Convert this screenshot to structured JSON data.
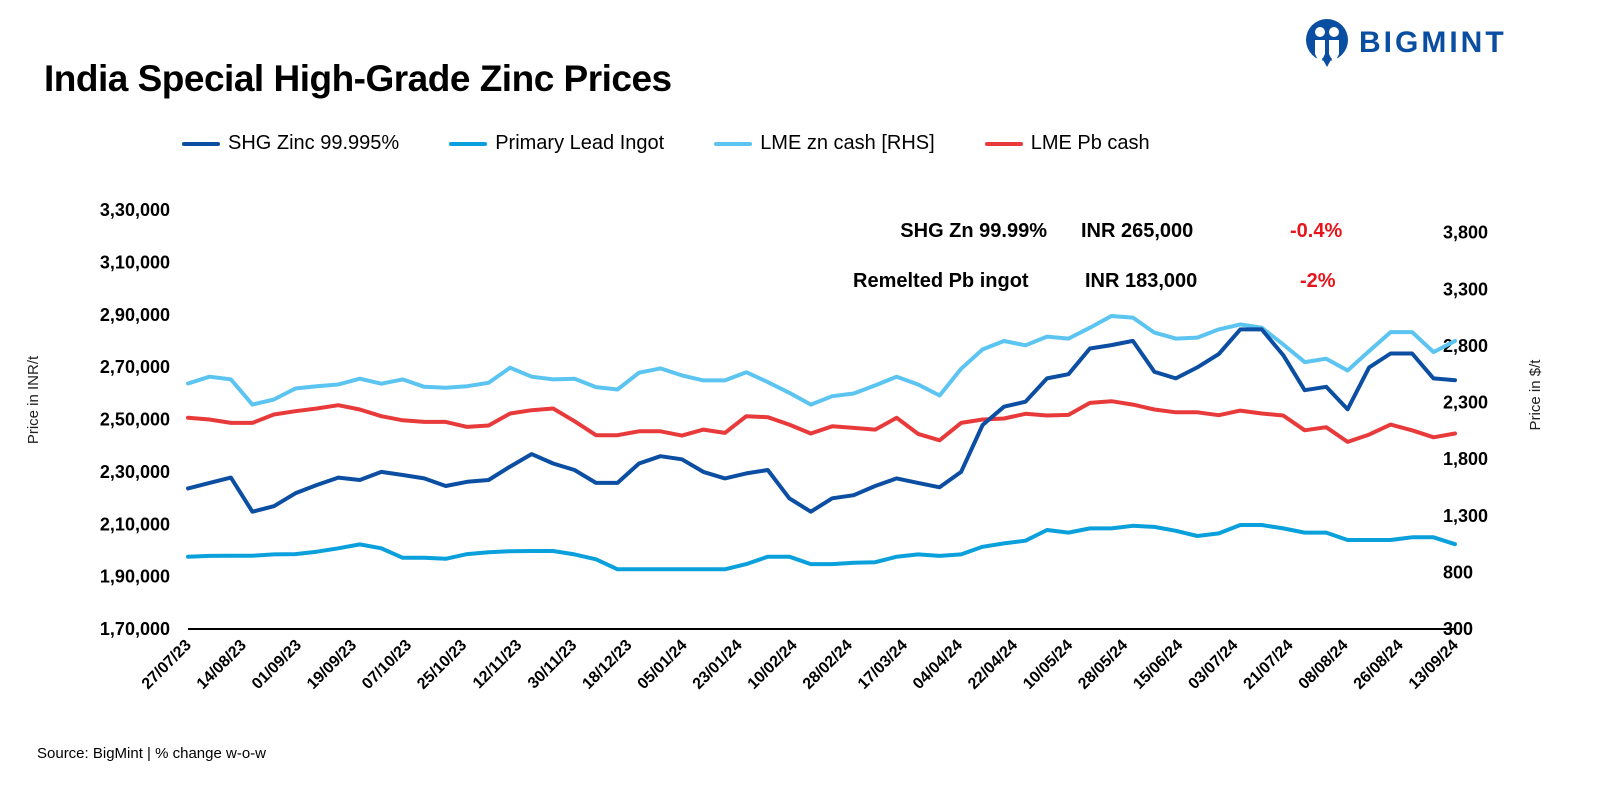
{
  "title": "India Special High-Grade Zinc Prices",
  "logo": {
    "text": "BIGMINT",
    "color": "#0a4ea2"
  },
  "legend": [
    {
      "name": "SHG Zinc 99.995%",
      "color": "#0b4ea2"
    },
    {
      "name": "Primary Lead Ingot",
      "color": "#0aa0dc"
    },
    {
      "name": "LME zn cash [RHS]",
      "color": "#5bc4f0"
    },
    {
      "name": "LME Pb cash",
      "color": "#e83a3a"
    }
  ],
  "annotations": [
    {
      "label": "SHG Zn 99.99%",
      "price": "INR 265,000",
      "change": "-0.4%"
    },
    {
      "label": "Remelted Pb ingot",
      "price": "INR 183,000",
      "change": "-2%"
    }
  ],
  "source": "Source: BigMint | % change w-o-w",
  "chart_data": {
    "type": "line",
    "title": "India Special High-Grade Zinc Prices",
    "ylabel": "Price in INR/t",
    "y2label": "Price in $/t",
    "ylim": [
      170000,
      330000
    ],
    "y2lim": [
      300,
      4000
    ],
    "yticks": [
      "1,70,000",
      "1,90,000",
      "2,10,000",
      "2,30,000",
      "2,50,000",
      "2,70,000",
      "2,90,000",
      "3,10,000",
      "3,30,000"
    ],
    "y2ticks": [
      "300",
      "800",
      "1,300",
      "1,800",
      "2,300",
      "2,800",
      "3,300",
      "3,800"
    ],
    "x_tick_labels": [
      "27/07/23",
      "14/08/23",
      "01/09/23",
      "19/09/23",
      "07/10/23",
      "25/10/23",
      "12/11/23",
      "30/11/23",
      "18/12/23",
      "05/01/24",
      "23/01/24",
      "10/02/24",
      "28/02/24",
      "17/03/24",
      "04/04/24",
      "22/04/24",
      "10/05/24",
      "28/05/24",
      "15/06/24",
      "03/07/24",
      "21/07/24",
      "08/08/24",
      "26/08/24",
      "13/09/24"
    ],
    "grid": false,
    "legend_position": "top",
    "series": [
      {
        "name": "SHG Zinc 99.995%",
        "axis": "left",
        "color": "#0b4ea2",
        "values": [
          223700,
          225800,
          227800,
          214800,
          216900,
          221800,
          225000,
          227800,
          226900,
          230000,
          228800,
          227500,
          224600,
          226200,
          226900,
          232000,
          236800,
          233200,
          230700,
          225800,
          225800,
          233200,
          236000,
          234800,
          230000,
          227500,
          229400,
          230700,
          219900,
          214800,
          219900,
          221100,
          224600,
          227500,
          225800,
          224100,
          230000,
          247900,
          254900,
          256800,
          265700,
          267300,
          277100,
          278400,
          280000,
          268200,
          265700,
          269900,
          275000,
          284400,
          284400,
          274600,
          261200,
          262500,
          253900,
          269900,
          275200,
          275200,
          265700,
          265000
        ]
      },
      {
        "name": "Primary Lead Ingot",
        "axis": "left",
        "color": "#0aa0dc",
        "values": [
          197600,
          197900,
          198000,
          198000,
          198500,
          198600,
          199500,
          200800,
          202300,
          200800,
          197200,
          197200,
          196800,
          198600,
          199300,
          199700,
          199800,
          199800,
          198500,
          196600,
          192800,
          192800,
          192800,
          192800,
          192800,
          192800,
          194800,
          197600,
          197600,
          194800,
          194800,
          195300,
          195500,
          197600,
          198500,
          197900,
          198500,
          201400,
          202700,
          203700,
          207800,
          206800,
          208400,
          208400,
          209400,
          209000,
          207500,
          205500,
          206500,
          209700,
          209700,
          208400,
          206800,
          206800,
          204000,
          204000,
          204000,
          205000,
          205000,
          202400
        ]
      },
      {
        "name": "LME zn cash [RHS]",
        "axis": "right",
        "color": "#5bc4f0",
        "values": [
          2468,
          2528,
          2504,
          2282,
          2327,
          2424,
          2444,
          2459,
          2510,
          2466,
          2504,
          2439,
          2430,
          2444,
          2474,
          2607,
          2528,
          2504,
          2510,
          2436,
          2415,
          2563,
          2601,
          2539,
          2495,
          2495,
          2568,
          2480,
          2386,
          2282,
          2356,
          2380,
          2451,
          2528,
          2459,
          2362,
          2598,
          2769,
          2843,
          2805,
          2882,
          2864,
          2961,
          3064,
          3050,
          2917,
          2864,
          2873,
          2946,
          2990,
          2961,
          2813,
          2657,
          2687,
          2583,
          2754,
          2922,
          2922,
          2745,
          2843
        ]
      },
      {
        "name": "LME Pb cash",
        "axis": "right",
        "color": "#e83a3a",
        "values": [
          2165,
          2150,
          2120,
          2120,
          2194,
          2223,
          2247,
          2276,
          2238,
          2179,
          2143,
          2129,
          2129,
          2085,
          2097,
          2203,
          2232,
          2247,
          2135,
          2011,
          2011,
          2046,
          2046,
          2008,
          2061,
          2032,
          2179,
          2170,
          2105,
          2026,
          2090,
          2076,
          2061,
          2165,
          2023,
          1966,
          2120,
          2150,
          2159,
          2200,
          2185,
          2191,
          2297,
          2312,
          2282,
          2238,
          2214,
          2214,
          2188,
          2229,
          2203,
          2185,
          2055,
          2082,
          1952,
          2017,
          2105,
          2055,
          1993,
          2026
        ]
      }
    ]
  }
}
